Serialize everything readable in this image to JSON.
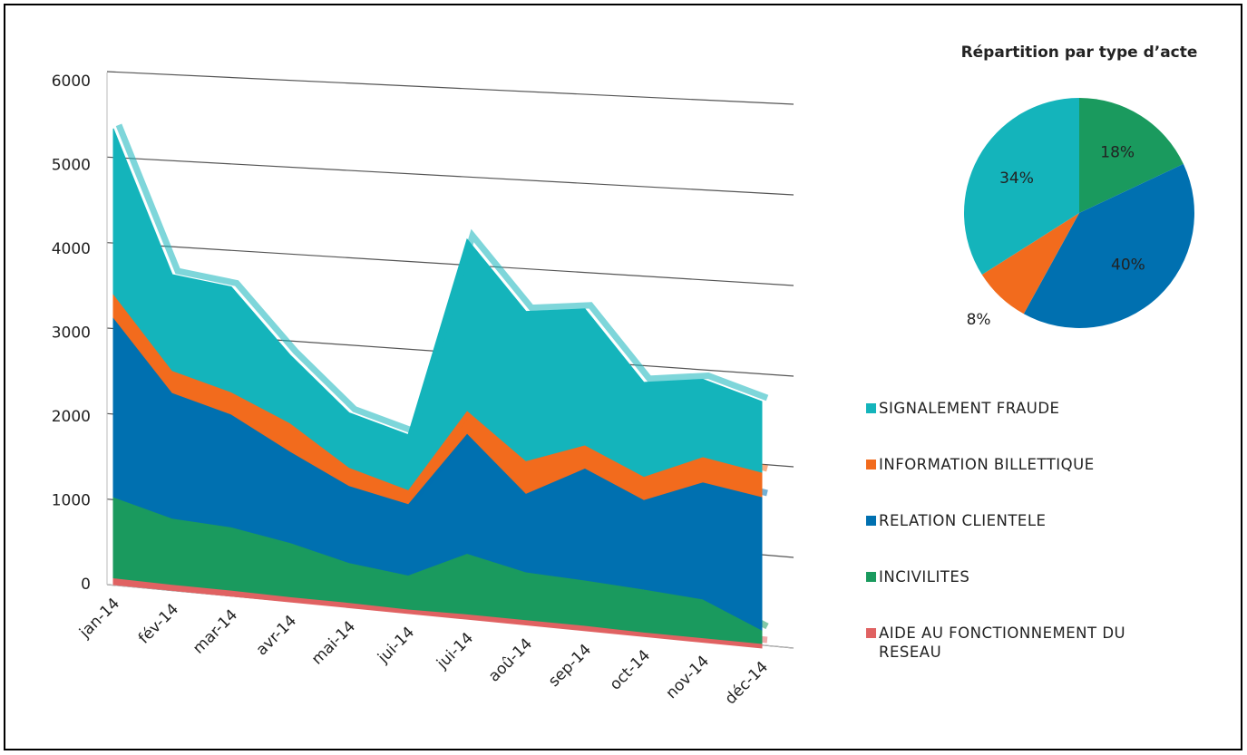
{
  "chart_data": [
    {
      "type": "area",
      "categories": [
        "jan-14",
        "fév-14",
        "mar-14",
        "avr-14",
        "mai-14",
        "jui-14",
        "jui-14",
        "aoû-14",
        "sep-14",
        "oct-14",
        "nov-14",
        "déc-14"
      ],
      "series": [
        {
          "name": "AIDE AU FONCTIONNEMENT DU RESEAU",
          "color": "#e06262",
          "values": [
            80,
            70,
            70,
            60,
            60,
            50,
            60,
            60,
            60,
            50,
            50,
            50
          ]
        },
        {
          "name": "INCIVILITES",
          "color": "#1a9a5e",
          "values": [
            960,
            780,
            740,
            630,
            460,
            390,
            690,
            540,
            510,
            480,
            430,
            150
          ]
        },
        {
          "name": "RELATION CLIENTELE",
          "color": "#0070b0",
          "values": [
            2130,
            1480,
            1320,
            1060,
            890,
            820,
            1370,
            890,
            1260,
            1000,
            1300,
            1470
          ]
        },
        {
          "name": "INFORMATION BILLETTIQUE",
          "color": "#f26b1d",
          "values": [
            280,
            260,
            260,
            330,
            210,
            160,
            260,
            370,
            260,
            260,
            280,
            270
          ]
        },
        {
          "name": "SIGNALEMENT FRAUDE",
          "color": "#14b4bb",
          "values": [
            1960,
            1130,
            1230,
            790,
            630,
            630,
            1950,
            1690,
            1530,
            1050,
            860,
            780
          ]
        }
      ],
      "ylim": [
        0,
        6000
      ],
      "yticks": [
        0,
        1000,
        2000,
        3000,
        4000,
        5000,
        6000
      ],
      "grid": true,
      "stacked": true
    },
    {
      "type": "pie",
      "title": "Répartition par type d’acte",
      "values": [
        18,
        40,
        8,
        34
      ],
      "value_labels": [
        "18%",
        "40%",
        "8%",
        "34%"
      ],
      "colors": [
        "#1a9a5e",
        "#0070b0",
        "#f26b1d",
        "#14b4bb"
      ]
    }
  ]
}
